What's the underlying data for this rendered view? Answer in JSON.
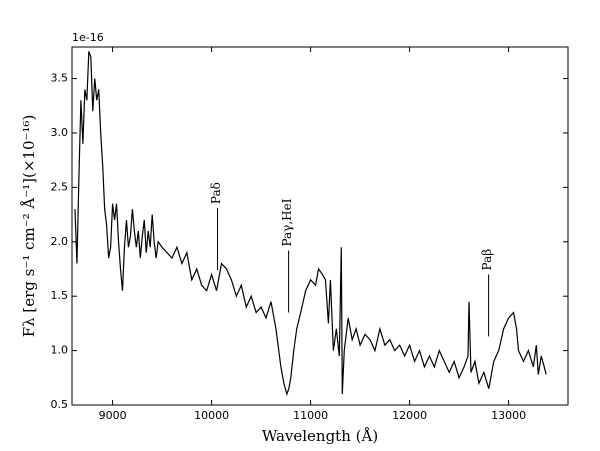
{
  "chart_data": {
    "type": "line",
    "x_label": "Wavelength (Å)",
    "y_label": "Fλ [erg s⁻¹ cm⁻² Å⁻¹](×10⁻¹⁶)",
    "y_offset_label": "1e-16",
    "color": "#000000",
    "xlim": [
      8590,
      13600
    ],
    "ylim": [
      0.5,
      3.79
    ],
    "xticks": [
      9000,
      10000,
      11000,
      12000,
      13000
    ],
    "yticks": [
      0.5,
      {
        "value": 1,
        "label": "1.0"
      },
      1.5,
      {
        "value": 2,
        "label": "2.0"
      },
      2.5,
      {
        "value": 3,
        "label": "3.0"
      },
      3.5
    ],
    "annotations": [
      {
        "text": "Paδ",
        "x": 10060,
        "y": 1.74
      },
      {
        "text": "Paγ,HeI",
        "x": 10778,
        "y": 1.35
      },
      {
        "text": "Paβ",
        "x": 12798,
        "y": 1.13
      }
    ],
    "x": [
      8620,
      8640,
      8660,
      8680,
      8700,
      8720,
      8740,
      8760,
      8780,
      8800,
      8820,
      8840,
      8860,
      8880,
      8900,
      8920,
      8940,
      8960,
      8980,
      9000,
      9020,
      9040,
      9060,
      9080,
      9100,
      9120,
      9140,
      9160,
      9180,
      9200,
      9220,
      9240,
      9260,
      9280,
      9300,
      9320,
      9340,
      9360,
      9380,
      9400,
      9420,
      9440,
      9460,
      9500,
      9550,
      9600,
      9650,
      9700,
      9750,
      9800,
      9850,
      9900,
      9950,
      10000,
      10050,
      10100,
      10150,
      10200,
      10250,
      10300,
      10350,
      10400,
      10450,
      10500,
      10550,
      10600,
      10650,
      10700,
      10730,
      10760,
      10780,
      10800,
      10830,
      10860,
      10900,
      10950,
      11000,
      11050,
      11080,
      11120,
      11150,
      11180,
      11200,
      11230,
      11260,
      11290,
      11310,
      11320,
      11340,
      11380,
      11420,
      11460,
      11500,
      11550,
      11600,
      11650,
      11700,
      11750,
      11800,
      11850,
      11900,
      11950,
      12000,
      12050,
      12100,
      12150,
      12200,
      12250,
      12300,
      12350,
      12400,
      12450,
      12500,
      12550,
      12590,
      12600,
      12620,
      12660,
      12700,
      12750,
      12800,
      12850,
      12900,
      12950,
      13000,
      13050,
      13080,
      13100,
      13150,
      13200,
      13250,
      13280,
      13300,
      13330,
      13360,
      13380
    ],
    "values": [
      2.3,
      1.8,
      2.6,
      3.3,
      2.9,
      3.4,
      3.3,
      3.75,
      3.7,
      3.2,
      3.5,
      3.3,
      3.4,
      3.0,
      2.7,
      2.3,
      2.15,
      1.85,
      1.95,
      2.35,
      2.2,
      2.35,
      2.0,
      1.75,
      1.55,
      1.95,
      2.2,
      1.95,
      2.05,
      2.3,
      2.1,
      1.95,
      2.1,
      1.85,
      2.05,
      2.2,
      1.9,
      2.1,
      1.95,
      2.25,
      2.0,
      1.85,
      2.0,
      1.95,
      1.9,
      1.85,
      1.95,
      1.8,
      1.9,
      1.65,
      1.75,
      1.6,
      1.55,
      1.7,
      1.55,
      1.8,
      1.75,
      1.65,
      1.5,
      1.6,
      1.4,
      1.5,
      1.35,
      1.4,
      1.3,
      1.45,
      1.2,
      0.85,
      0.7,
      0.6,
      0.65,
      0.75,
      1.0,
      1.2,
      1.35,
      1.55,
      1.65,
      1.6,
      1.75,
      1.7,
      1.65,
      1.25,
      1.65,
      1.0,
      1.2,
      0.95,
      1.95,
      0.6,
      1.0,
      1.3,
      1.1,
      1.2,
      1.05,
      1.15,
      1.1,
      1.0,
      1.2,
      1.05,
      1.1,
      1.0,
      1.05,
      0.95,
      1.05,
      0.9,
      1.0,
      0.85,
      0.95,
      0.85,
      1.0,
      0.9,
      0.8,
      0.9,
      0.75,
      0.85,
      0.95,
      1.45,
      0.8,
      0.9,
      0.7,
      0.8,
      0.65,
      0.9,
      1.0,
      1.2,
      1.3,
      1.35,
      1.2,
      1.0,
      0.9,
      1.0,
      0.85,
      1.05,
      0.78,
      0.95,
      0.85,
      0.78
    ]
  }
}
